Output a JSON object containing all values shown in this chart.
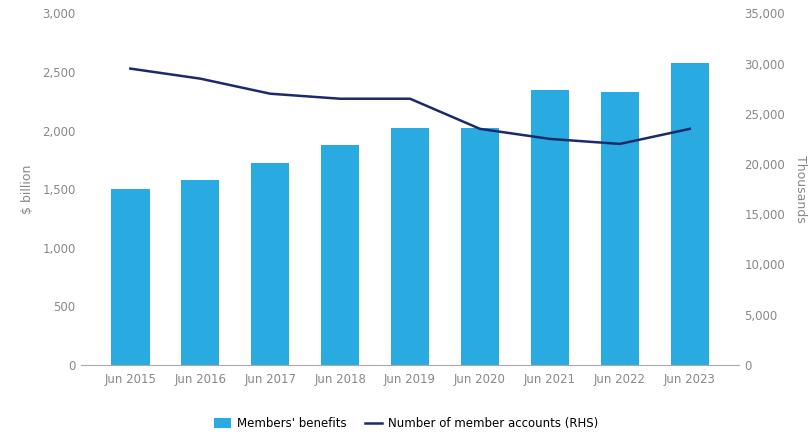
{
  "years": [
    "Jun 2015",
    "Jun 2016",
    "Jun 2017",
    "Jun 2018",
    "Jun 2019",
    "Jun 2020",
    "Jun 2021",
    "Jun 2022",
    "Jun 2023"
  ],
  "members_benefits": [
    1500,
    1575,
    1725,
    1875,
    2025,
    2025,
    2350,
    2325,
    2575
  ],
  "num_accounts": [
    29500,
    28500,
    27000,
    26500,
    26500,
    23500,
    22500,
    22000,
    23500
  ],
  "bar_color": "#29ABE2",
  "line_color": "#1B2A6B",
  "left_ylabel": "$ billion",
  "right_ylabel": "Thousands",
  "ylim_left": [
    0,
    3000
  ],
  "ylim_right": [
    0,
    35000
  ],
  "yticks_left": [
    0,
    500,
    1000,
    1500,
    2000,
    2500,
    3000
  ],
  "yticks_right": [
    0,
    5000,
    10000,
    15000,
    20000,
    25000,
    30000,
    35000
  ],
  "legend_bar_label": "Members' benefits",
  "legend_line_label": "Number of member accounts (RHS)",
  "bg_color": "#ffffff",
  "spine_color": "#aaaaaa",
  "tick_label_color": "#888888",
  "axis_label_color": "#888888",
  "line_width": 1.8,
  "bar_width": 0.55
}
